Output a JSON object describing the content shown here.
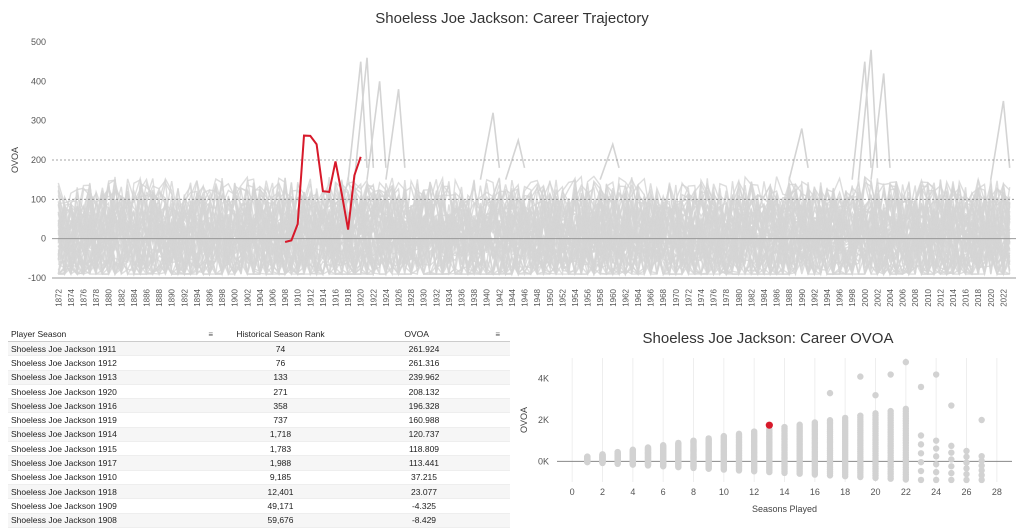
{
  "top_chart": {
    "title": "Shoeless Joe Jackson: Career Trajectory",
    "ylabel": "OVOA",
    "yticks": [
      500,
      400,
      300,
      200,
      100,
      0,
      -100
    ],
    "xticks": [
      "1872",
      "1874",
      "1876",
      "1878",
      "1880",
      "1882",
      "1884",
      "1886",
      "1888",
      "1890",
      "1892",
      "1894",
      "1896",
      "1898",
      "1900",
      "1902",
      "1904",
      "1906",
      "1908",
      "1910",
      "1912",
      "1914",
      "1916",
      "1918",
      "1920",
      "1922",
      "1924",
      "1926",
      "1928",
      "1930",
      "1932",
      "1934",
      "1936",
      "1938",
      "1940",
      "1942",
      "1944",
      "1946",
      "1948",
      "1950",
      "1952",
      "1954",
      "1956",
      "1958",
      "1960",
      "1962",
      "1964",
      "1966",
      "1968",
      "1970",
      "1972",
      "1974",
      "1976",
      "1978",
      "1980",
      "1982",
      "1984",
      "1986",
      "1988",
      "1990",
      "1992",
      "1994",
      "1996",
      "1998",
      "2000",
      "2002",
      "2004",
      "2006",
      "2008",
      "2010",
      "2012",
      "2014",
      "2016",
      "2018",
      "2020",
      "2022"
    ]
  },
  "table": {
    "headers": {
      "player_season": "Player Season",
      "rank": "Historical Season Rank",
      "ovoa": "OVOA"
    },
    "sort_icon": "sort-icon",
    "rows": [
      {
        "player_season": "Shoeless Joe Jackson 1911",
        "rank": "74",
        "ovoa": "261.924"
      },
      {
        "player_season": "Shoeless Joe Jackson 1912",
        "rank": "76",
        "ovoa": "261.316"
      },
      {
        "player_season": "Shoeless Joe Jackson 1913",
        "rank": "133",
        "ovoa": "239.962"
      },
      {
        "player_season": "Shoeless Joe Jackson 1920",
        "rank": "271",
        "ovoa": "208.132"
      },
      {
        "player_season": "Shoeless Joe Jackson 1916",
        "rank": "358",
        "ovoa": "196.328"
      },
      {
        "player_season": "Shoeless Joe Jackson 1919",
        "rank": "737",
        "ovoa": "160.988"
      },
      {
        "player_season": "Shoeless Joe Jackson 1914",
        "rank": "1,718",
        "ovoa": "120.737"
      },
      {
        "player_season": "Shoeless Joe Jackson 1915",
        "rank": "1,783",
        "ovoa": "118.809"
      },
      {
        "player_season": "Shoeless Joe Jackson 1917",
        "rank": "1,988",
        "ovoa": "113.441"
      },
      {
        "player_season": "Shoeless Joe Jackson 1910",
        "rank": "9,185",
        "ovoa": "37.215"
      },
      {
        "player_season": "Shoeless Joe Jackson 1918",
        "rank": "12,401",
        "ovoa": "23.077"
      },
      {
        "player_season": "Shoeless Joe Jackson 1909",
        "rank": "49,171",
        "ovoa": "-4.325"
      },
      {
        "player_season": "Shoeless Joe Jackson 1908",
        "rank": "59,676",
        "ovoa": "-8.429"
      }
    ]
  },
  "scatter_chart": {
    "title": "Shoeless Joe Jackson: Career OVOA",
    "ylabel": "OVOA",
    "xlabel": "Seasons Played",
    "xticks": [
      "0",
      "2",
      "4",
      "6",
      "8",
      "10",
      "12",
      "14",
      "16",
      "18",
      "20",
      "22",
      "24",
      "26",
      "28"
    ],
    "yticks": [
      "4K",
      "2K",
      "0K"
    ]
  },
  "chart_data": [
    {
      "type": "line",
      "title": "Shoeless Joe Jackson: Career Trajectory",
      "ylabel": "OVOA",
      "ylim": [
        -100,
        500
      ],
      "xlim": [
        1871,
        2024
      ],
      "highlight_color": "#d7192a",
      "background_color": "#d4d4d4",
      "series": [
        {
          "name": "Shoeless Joe Jackson",
          "x": [
            1908,
            1909,
            1910,
            1911,
            1912,
            1913,
            1914,
            1915,
            1916,
            1917,
            1918,
            1919,
            1920
          ],
          "y": [
            -8.429,
            -4.325,
            37.215,
            261.924,
            261.316,
            239.962,
            120.737,
            118.809,
            196.328,
            113.441,
            23.077,
            160.988,
            208.132
          ]
        }
      ]
    },
    {
      "type": "scatter",
      "title": "Shoeless Joe Jackson: Career OVOA",
      "xlabel": "Seasons Played",
      "ylabel": "OVOA",
      "xlim": [
        -1,
        29
      ],
      "ylim": [
        -1000,
        5000
      ],
      "highlight": {
        "x": 13,
        "y": 1750,
        "color": "#d7192a"
      },
      "outliers": [
        {
          "x": 17,
          "y": 3300
        },
        {
          "x": 19,
          "y": 4100
        },
        {
          "x": 21,
          "y": 4200
        },
        {
          "x": 22,
          "y": 4800
        },
        {
          "x": 24,
          "y": 4200
        },
        {
          "x": 25,
          "y": 2700
        },
        {
          "x": 27,
          "y": 2000
        },
        {
          "x": 23,
          "y": 3600
        },
        {
          "x": 20,
          "y": 3200
        }
      ]
    }
  ]
}
